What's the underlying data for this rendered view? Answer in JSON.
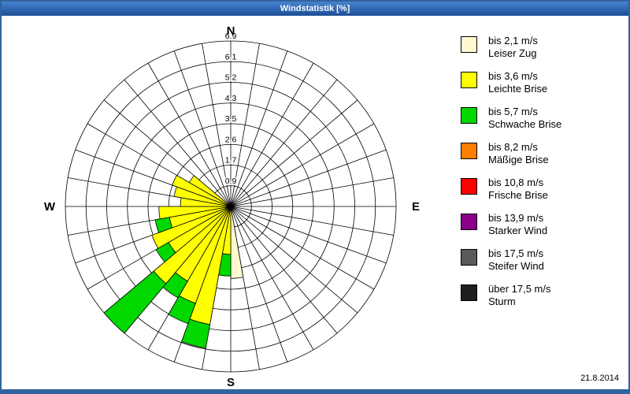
{
  "window": {
    "title": "Windstatistik [%]"
  },
  "footer": {
    "date": "21.8.2014"
  },
  "chart_data": {
    "type": "windrose",
    "title": "Windstatistik [%]",
    "unit": "%",
    "max": 6.9,
    "ring_labels": [
      "0.9",
      "1.7",
      "2.6",
      "3.5",
      "4.3",
      "5.2",
      "6.1",
      "6.9"
    ],
    "sector_width_deg": 10,
    "compass": {
      "n": "N",
      "e": "E",
      "s": "S",
      "w": "W"
    },
    "grid_color": "#000000",
    "speed_classes": [
      {
        "id": "leiser-zug",
        "label_speed": "bis 2,1 m/s",
        "label_name": "Leiser Zug",
        "color": "#FFF8D0"
      },
      {
        "id": "leichte-brise",
        "label_speed": "bis 3,6 m/s",
        "label_name": "Leichte Brise",
        "color": "#FFFF00"
      },
      {
        "id": "schwache-brise",
        "label_speed": "bis 5,7 m/s",
        "label_name": "Schwache Brise",
        "color": "#00D800"
      },
      {
        "id": "maessige-brise",
        "label_speed": "bis 8,2 m/s",
        "label_name": "Mäßige Brise",
        "color": "#FF8000"
      },
      {
        "id": "frische-brise",
        "label_speed": "bis 10,8 m/s",
        "label_name": "Frische Brise",
        "color": "#FF0000"
      },
      {
        "id": "starker-wind",
        "label_speed": "bis 13,9 m/s",
        "label_name": "Starker Wind",
        "color": "#8A008A"
      },
      {
        "id": "steifer-wind",
        "label_speed": "bis 17,5 m/s",
        "label_name": "Steifer Wind",
        "color": "#5A5A5A"
      },
      {
        "id": "sturm",
        "label_speed": "über 17,5 m/s",
        "label_name": "Sturm",
        "color": "#1E1E1E"
      }
    ],
    "petals": [
      {
        "dir_deg": 175,
        "segments": [
          {
            "class": 0,
            "to": 3.0
          }
        ]
      },
      {
        "dir_deg": 185,
        "segments": [
          {
            "class": 1,
            "to": 2.0
          },
          {
            "class": 2,
            "to": 2.9
          }
        ]
      },
      {
        "dir_deg": 195,
        "segments": [
          {
            "class": 1,
            "to": 5.0
          },
          {
            "class": 2,
            "to": 6.0
          }
        ]
      },
      {
        "dir_deg": 205,
        "segments": [
          {
            "class": 1,
            "to": 4.3
          },
          {
            "class": 2,
            "to": 5.2
          }
        ]
      },
      {
        "dir_deg": 215,
        "segments": [
          {
            "class": 1,
            "to": 3.6
          },
          {
            "class": 2,
            "to": 4.4
          }
        ]
      },
      {
        "dir_deg": 225,
        "segments": [
          {
            "class": 1,
            "to": 4.2
          },
          {
            "class": 2,
            "to": 6.9
          }
        ]
      },
      {
        "dir_deg": 235,
        "segments": [
          {
            "class": 1,
            "to": 3.0
          },
          {
            "class": 2,
            "to": 3.6
          }
        ]
      },
      {
        "dir_deg": 245,
        "segments": [
          {
            "class": 1,
            "to": 3.5
          }
        ]
      },
      {
        "dir_deg": 255,
        "segments": [
          {
            "class": 1,
            "to": 2.6
          },
          {
            "class": 2,
            "to": 3.2
          }
        ]
      },
      {
        "dir_deg": 265,
        "segments": [
          {
            "class": 1,
            "to": 3.0
          }
        ]
      },
      {
        "dir_deg": 275,
        "segments": [
          {
            "class": 1,
            "to": 2.1
          }
        ]
      },
      {
        "dir_deg": 285,
        "segments": [
          {
            "class": 1,
            "to": 2.4
          }
        ]
      },
      {
        "dir_deg": 295,
        "segments": [
          {
            "class": 1,
            "to": 2.6
          }
        ]
      },
      {
        "dir_deg": 305,
        "segments": [
          {
            "class": 1,
            "to": 2.0
          }
        ]
      }
    ]
  }
}
